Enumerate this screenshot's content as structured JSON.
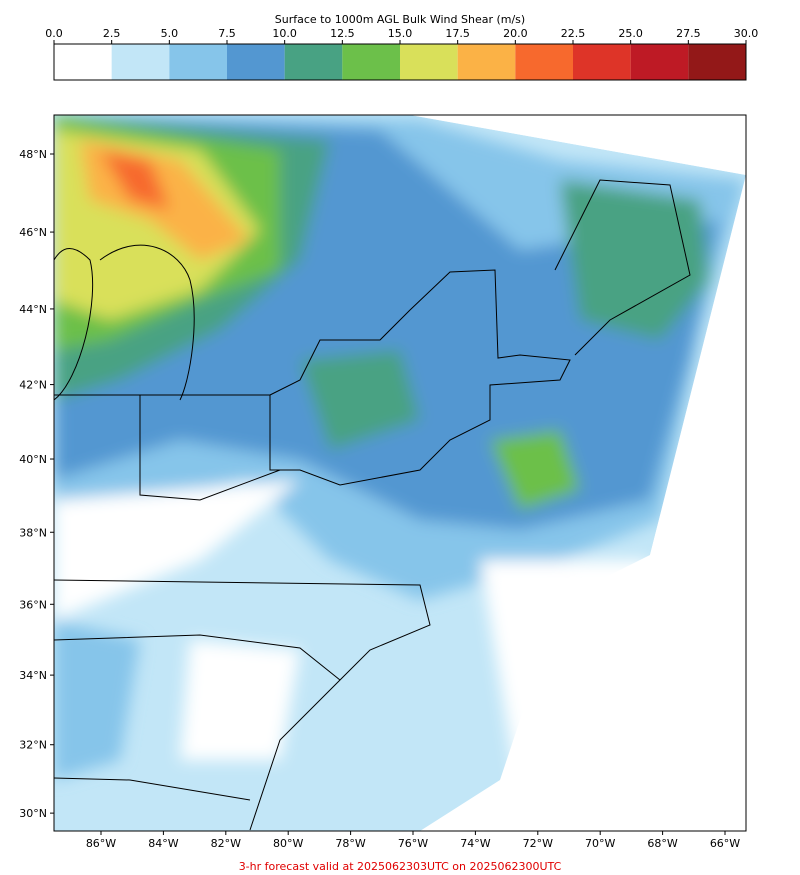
{
  "colorbar": {
    "title": "Surface to 1000m AGL Bulk Wind Shear (m/s)",
    "ticks": [
      {
        "value": 0,
        "label": "0.0"
      },
      2.5,
      {
        "value": 5,
        "label": "5.0"
      },
      7.5,
      {
        "value": 10,
        "label": "10.0"
      },
      12.5,
      {
        "value": 15,
        "label": "15.0"
      },
      17.5,
      {
        "value": 20,
        "label": "20.0"
      },
      22.5,
      {
        "value": 25,
        "label": "25.0"
      },
      27.5,
      {
        "value": 30,
        "label": "30.0"
      }
    ],
    "colors": [
      "#ffffff",
      "#c2e6f7",
      "#86c5ea",
      "#5397d1",
      "#48a283",
      "#6cc04a",
      "#d9e05a",
      "#fbb246",
      "#f7692d",
      "#de3428",
      "#be1a25",
      "#931818"
    ]
  },
  "map": {
    "lat_ticks": [
      {
        "value": 48,
        "label": "48°N"
      },
      {
        "value": 46,
        "label": "46°N"
      },
      {
        "value": 44,
        "label": "44°N"
      },
      {
        "value": 42,
        "label": "42°N"
      },
      {
        "value": 40,
        "label": "40°N"
      },
      {
        "value": 38,
        "label": "38°N"
      },
      {
        "value": 36,
        "label": "36°N"
      },
      {
        "value": 34,
        "label": "34°N"
      },
      {
        "value": 32,
        "label": "32°N"
      },
      {
        "value": 30,
        "label": "30°N"
      }
    ],
    "lon_ticks": [
      {
        "value": -86,
        "label": "86°W"
      },
      {
        "value": -84,
        "label": "84°W"
      },
      {
        "value": -82,
        "label": "82°W"
      },
      {
        "value": -80,
        "label": "80°W"
      },
      {
        "value": -78,
        "label": "78°W"
      },
      {
        "value": -76,
        "label": "76°W"
      },
      {
        "value": -74,
        "label": "74°W"
      },
      {
        "value": -72,
        "label": "72°W"
      },
      {
        "value": -70,
        "label": "70°W"
      },
      {
        "value": -68,
        "label": "68°W"
      },
      {
        "value": -66,
        "label": "66°W"
      }
    ]
  },
  "footer": "3-hr forecast valid at 2025062303UTC on 2025062300UTC"
}
